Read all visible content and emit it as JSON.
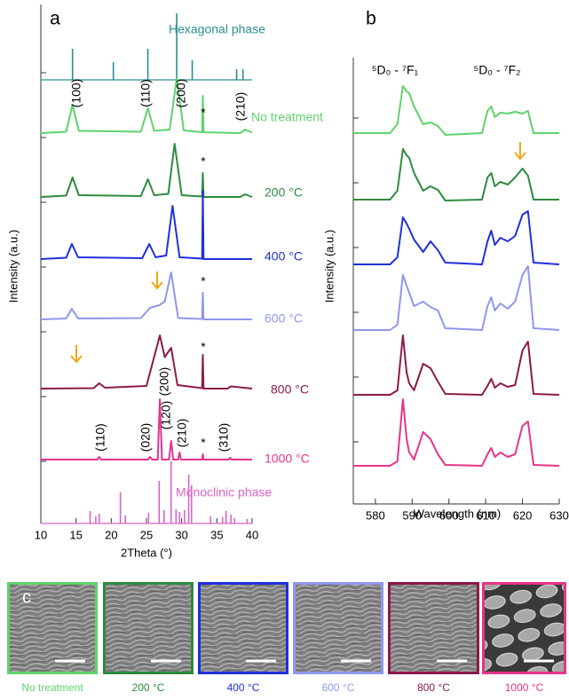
{
  "chart_data": [
    {
      "type": "line",
      "label": "a",
      "xlabel": "2Theta (°)",
      "ylabel": "Intensity (a.u.)",
      "xlim": [
        10,
        40
      ],
      "xticks": [
        10,
        15,
        20,
        25,
        30,
        35,
        40
      ],
      "ylim": [
        0,
        117
      ],
      "annotations": [
        "(100)",
        "(110)",
        "(200)",
        "(210)",
        "*",
        "*",
        "*",
        "*",
        "*",
        "(110)",
        "(020)",
        "(120)",
        "(200)",
        "(210)",
        "(310)"
      ],
      "series": [
        {
          "name": "Hexagonal phase",
          "type": "stick",
          "color": "#2a8f8f",
          "baseline": 100,
          "x": [
            14.5,
            20.3,
            25.2,
            29.3,
            31.5,
            37.8,
            38.7
          ],
          "values": [
            107,
            104,
            107,
            115,
            104.4,
            102.4,
            102.4
          ]
        },
        {
          "name": "No treatment",
          "color": "#5ed36b",
          "x": [
            10,
            13.6,
            14.5,
            15.4,
            24.2,
            25.2,
            26.1,
            28.3,
            29.3,
            30.3,
            32.9,
            33,
            33.1,
            38.3,
            39,
            40
          ],
          "values": [
            88,
            88.3,
            94.4,
            88.5,
            88.3,
            93.6,
            88.5,
            88.8,
            100.4,
            88.6,
            88.2,
            96.4,
            88.2,
            88,
            88.8,
            88.1
          ]
        },
        {
          "name": "200 °C",
          "color": "#2e8b3e",
          "x": [
            10,
            13.6,
            14.5,
            15.4,
            24.2,
            25.2,
            26.1,
            28.1,
            29.0,
            30.0,
            32.9,
            33,
            33.1,
            38.3,
            39,
            40
          ],
          "values": [
            73.6,
            73.9,
            78,
            74,
            73.8,
            77.6,
            74,
            74.3,
            85.6,
            74,
            73.7,
            79,
            73.6,
            73.6,
            74.2,
            73.6
          ]
        },
        {
          "name": "400 °C",
          "color": "#1f30dc",
          "x": [
            10,
            13.6,
            14.4,
            15.3,
            24.4,
            25.4,
            26.3,
            27.8,
            28.7,
            29.7,
            32.9,
            33,
            33.1,
            40
          ],
          "values": [
            59.6,
            59.9,
            63,
            60,
            59.8,
            63,
            60,
            60.4,
            71.6,
            60,
            59.7,
            75,
            59.6,
            59.6
          ]
        },
        {
          "name": "600 °C",
          "color": "#8f97ee",
          "x": [
            10,
            13.6,
            14.4,
            15.3,
            24.2,
            25.5,
            26.8,
            27.6,
            28.5,
            29.5,
            32.9,
            33,
            33.1,
            40
          ],
          "values": [
            46,
            46.2,
            48.4,
            46.2,
            46.3,
            48.6,
            49.2,
            50,
            56.6,
            46.3,
            46.1,
            52,
            46,
            46
          ]
        },
        {
          "name": "800 °C",
          "color": "#8b1a4a",
          "x": [
            10,
            17.5,
            18.3,
            19.1,
            25,
            26.9,
            27.6,
            28.5,
            29.4,
            32.9,
            33,
            33.1,
            36.5,
            37,
            40
          ],
          "values": [
            30.4,
            30.5,
            31.6,
            30.6,
            31,
            42.4,
            37.5,
            39.6,
            31.2,
            30.5,
            38,
            30.4,
            30.4,
            30.9,
            30.4
          ]
        },
        {
          "name": "1000 °C",
          "color": "#e8338a",
          "x": [
            10,
            18,
            18.3,
            18.6,
            25.2,
            25.5,
            25.8,
            26.6,
            26.9,
            27.2,
            28.2,
            28.5,
            28.8,
            29.5,
            29.7,
            29.9,
            32.9,
            33,
            33.1,
            36.7,
            36.9,
            37.1,
            40
          ],
          "values": [
            14.4,
            14.4,
            15,
            14.4,
            14.4,
            15,
            14.4,
            14.4,
            28,
            14.4,
            14.4,
            18.6,
            14.4,
            14.4,
            16,
            14.4,
            14.4,
            15.6,
            14.4,
            14.4,
            14.8,
            14.4,
            14.4
          ]
        },
        {
          "name": "Monoclinic phase",
          "type": "stick",
          "color": "#d964c8",
          "baseline": 0,
          "x": [
            17.0,
            17.8,
            18.3,
            21.3,
            22.0,
            25.3,
            26.8,
            27.5,
            28.5,
            29.2,
            29.7,
            30.4,
            31.0,
            31.4,
            34.1,
            35.8,
            36.3,
            37.0,
            37.5,
            39.3
          ],
          "values": [
            2.8,
            1.6,
            2.2,
            7,
            1.8,
            2.4,
            9.6,
            3,
            14,
            3.2,
            2.6,
            3,
            11,
            8.6,
            1.6,
            1.4,
            2.8,
            2,
            1.2,
            1
          ]
        }
      ]
    },
    {
      "type": "line",
      "label": "b",
      "xlabel": "Wavelength (nm)",
      "ylabel": "Intensity (a.u.)",
      "xlim": [
        574,
        630
      ],
      "xticks": [
        580,
        590,
        600,
        610,
        620,
        630
      ],
      "ylim": [
        0,
        100.6
      ],
      "annotations": [
        "⁵D₀ - ⁷F₁",
        "⁵D₀ - ⁷F₂"
      ],
      "x": [
        574,
        584,
        586,
        587.5,
        588.5,
        589.2,
        590.5,
        593,
        595,
        597,
        599,
        609,
        610.5,
        611.5,
        612.5,
        614,
        616,
        618,
        620,
        621.5,
        623,
        630
      ],
      "series": [
        {
          "color": "#5ed36b",
          "values": [
            83.6,
            83.6,
            85.6,
            94.2,
            93,
            92.6,
            89.6,
            85.6,
            86,
            85.2,
            83.2,
            83.6,
            88.6,
            89.6,
            87.2,
            88.2,
            88,
            88.4,
            88,
            88.6,
            83.6,
            83.6
          ]
        },
        {
          "color": "#2e8b3e",
          "values": [
            68.6,
            68.6,
            70.6,
            80,
            78.6,
            78,
            74.6,
            70.6,
            71.6,
            70.8,
            68.4,
            68.6,
            73.6,
            74.6,
            71.6,
            72.6,
            72,
            73.6,
            75.6,
            74,
            68.6,
            68.6
          ]
        },
        {
          "color": "#1f30dc",
          "values": [
            54,
            54,
            55.6,
            64.6,
            63.2,
            62,
            59.6,
            56.8,
            59.2,
            57.2,
            54.4,
            54,
            59.2,
            61.6,
            58.4,
            60,
            59.2,
            60.4,
            65.2,
            66,
            54.4,
            54
          ]
        },
        {
          "color": "#8f97ee",
          "values": [
            39.2,
            39.2,
            40.4,
            51.6,
            49.2,
            47.6,
            44.6,
            45.6,
            44.4,
            43.6,
            39.6,
            39.2,
            44.6,
            46.6,
            43.6,
            45.2,
            44,
            45.6,
            51.6,
            53.6,
            39.6,
            39.2
          ]
        },
        {
          "color": "#8b1a4a",
          "values": [
            24.6,
            24.6,
            25.6,
            38,
            29.6,
            27.2,
            25.6,
            31.6,
            30.6,
            27.6,
            24.8,
            24.6,
            26.6,
            28.2,
            26.2,
            27.2,
            26.4,
            26.8,
            34.6,
            36.6,
            24.8,
            24.6
          ]
        },
        {
          "color": "#e8338a",
          "values": [
            8.6,
            8.6,
            9.6,
            23.6,
            14.6,
            11.6,
            10,
            16.2,
            14.6,
            11.2,
            8.8,
            8.6,
            11.2,
            12.6,
            10.6,
            11.6,
            10.6,
            11.2,
            17.6,
            18.6,
            8.8,
            8.6
          ]
        }
      ]
    }
  ],
  "panel_c": {
    "label": "c",
    "images": [
      {
        "caption": "No treatment",
        "color": "#5ed36b"
      },
      {
        "caption": "200 °C",
        "color": "#2e8b3e"
      },
      {
        "caption": "400 °C",
        "color": "#1f30dc"
      },
      {
        "caption": "600 °C",
        "color": "#8f97ee"
      },
      {
        "caption": "800 °C",
        "color": "#8b1a4a"
      },
      {
        "caption": "1000 °C",
        "color": "#e8338a"
      }
    ]
  }
}
